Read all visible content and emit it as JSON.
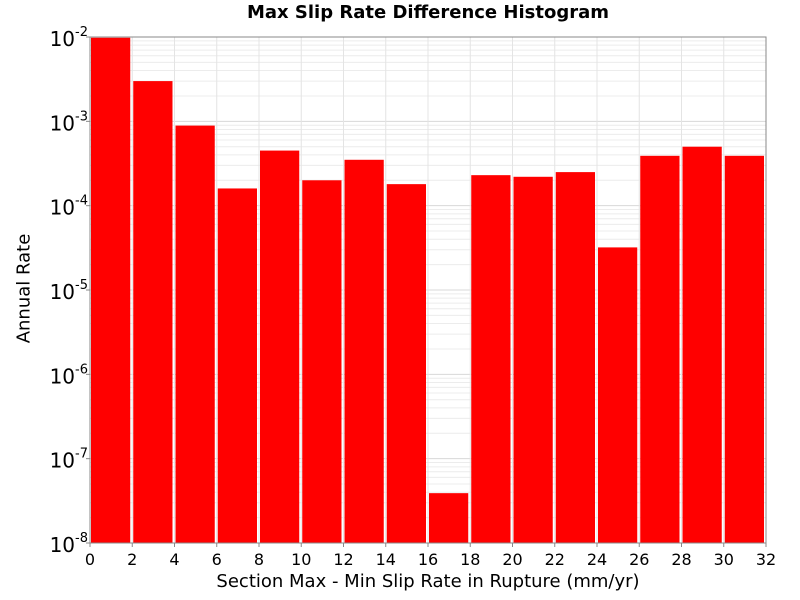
{
  "chart_data": {
    "type": "bar",
    "title": "Max Slip Rate Difference Histogram",
    "xlabel": "Section Max - Min Slip Rate in Rupture (mm/yr)",
    "ylabel": "Annual Rate",
    "xlim": [
      0,
      32
    ],
    "ylim": [
      1e-08,
      0.01
    ],
    "y_scale": "log",
    "grid": true,
    "bar_color": "#ff0000",
    "x_ticks": [
      0,
      2,
      4,
      6,
      8,
      10,
      12,
      14,
      16,
      18,
      20,
      22,
      24,
      26,
      28,
      30,
      32
    ],
    "y_ticks": [
      {
        "base": "10",
        "exp": "-2",
        "value": 0.01
      },
      {
        "base": "10",
        "exp": "-3",
        "value": 0.001
      },
      {
        "base": "10",
        "exp": "-4",
        "value": 0.0001
      },
      {
        "base": "10",
        "exp": "-5",
        "value": 1e-05
      },
      {
        "base": "10",
        "exp": "-6",
        "value": 1e-06
      },
      {
        "base": "10",
        "exp": "-7",
        "value": 1e-07
      },
      {
        "base": "10",
        "exp": "-8",
        "value": 1e-08
      }
    ],
    "bins": [
      {
        "x0": 0,
        "x1": 2,
        "value": 0.0098
      },
      {
        "x0": 2,
        "x1": 4,
        "value": 0.003
      },
      {
        "x0": 4,
        "x1": 6,
        "value": 0.00089
      },
      {
        "x0": 6,
        "x1": 8,
        "value": 0.00016
      },
      {
        "x0": 8,
        "x1": 10,
        "value": 0.00045
      },
      {
        "x0": 10,
        "x1": 12,
        "value": 0.0002
      },
      {
        "x0": 12,
        "x1": 14,
        "value": 0.00035
      },
      {
        "x0": 14,
        "x1": 16,
        "value": 0.00018
      },
      {
        "x0": 16,
        "x1": 18,
        "value": 3.9e-08
      },
      {
        "x0": 18,
        "x1": 20,
        "value": 0.00023
      },
      {
        "x0": 20,
        "x1": 22,
        "value": 0.00022
      },
      {
        "x0": 22,
        "x1": 24,
        "value": 0.00025
      },
      {
        "x0": 24,
        "x1": 26,
        "value": 3.2e-05
      },
      {
        "x0": 26,
        "x1": 28,
        "value": 0.00039
      },
      {
        "x0": 28,
        "x1": 30,
        "value": 0.0005
      },
      {
        "x0": 30,
        "x1": 32,
        "value": 0.00039
      }
    ]
  }
}
